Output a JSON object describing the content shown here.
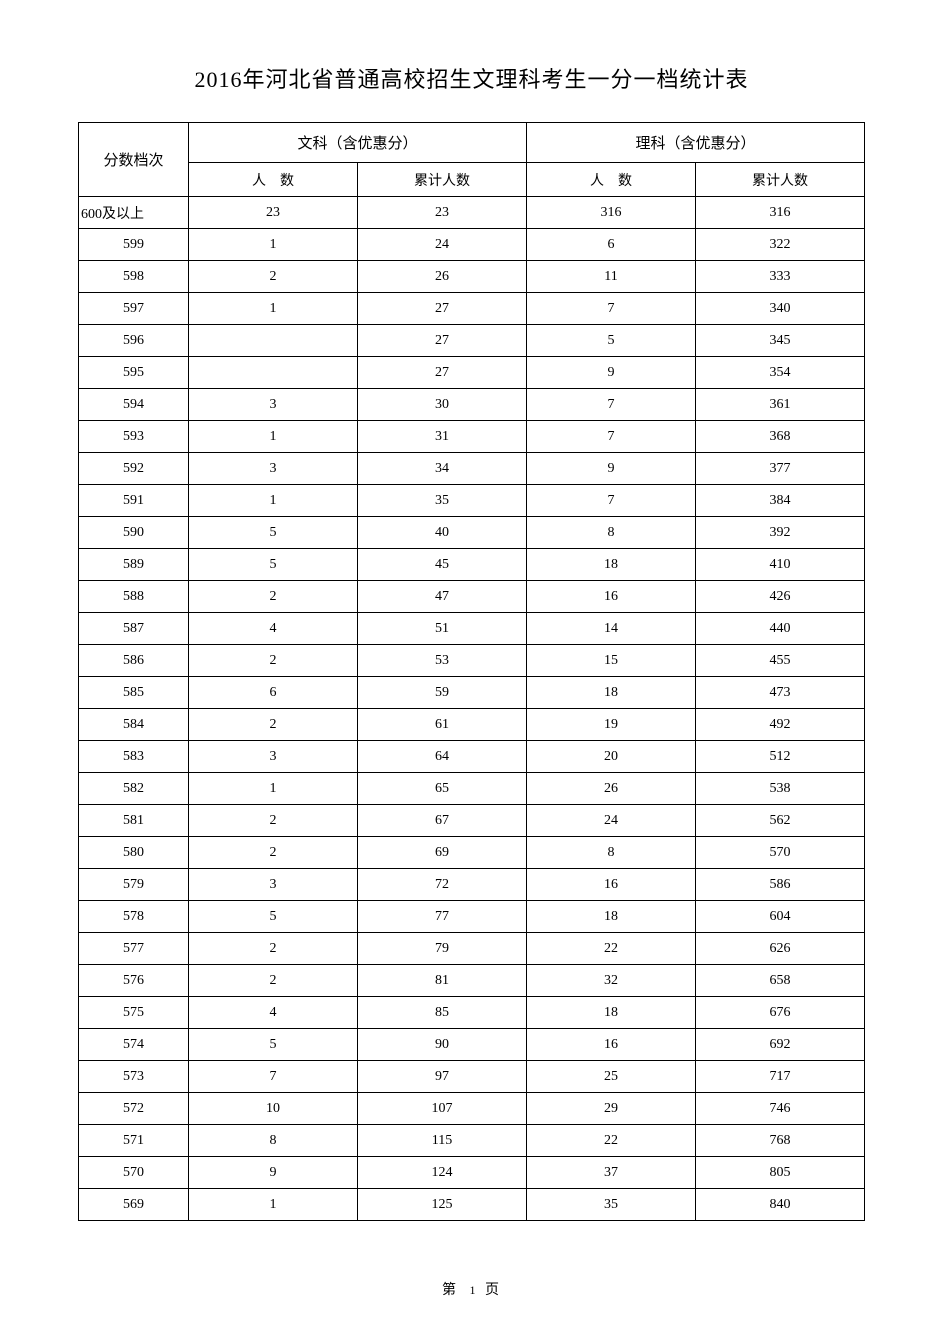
{
  "title": "2016年河北省普通高校招生文理科考生一分一档统计表",
  "headers": {
    "score_level": "分数档次",
    "liberal_arts": "文科（含优惠分）",
    "science": "理科（含优惠分）",
    "count": "人　数",
    "cumulative": "累计人数"
  },
  "footer": {
    "prefix": "第",
    "page": "1",
    "suffix": "页"
  },
  "colors": {
    "border": "#000000",
    "background": "#ffffff",
    "text": "#000000"
  },
  "typography": {
    "title_fontsize": 22,
    "cell_fontsize": 14,
    "font_family": "SimSun"
  },
  "table": {
    "type": "table",
    "columns": [
      "分数档次",
      "文科-人数",
      "文科-累计人数",
      "理科-人数",
      "理科-累计人数"
    ],
    "rows": [
      [
        "600及以上",
        "23",
        "23",
        "316",
        "316"
      ],
      [
        "599",
        "1",
        "24",
        "6",
        "322"
      ],
      [
        "598",
        "2",
        "26",
        "11",
        "333"
      ],
      [
        "597",
        "1",
        "27",
        "7",
        "340"
      ],
      [
        "596",
        "",
        "27",
        "5",
        "345"
      ],
      [
        "595",
        "",
        "27",
        "9",
        "354"
      ],
      [
        "594",
        "3",
        "30",
        "7",
        "361"
      ],
      [
        "593",
        "1",
        "31",
        "7",
        "368"
      ],
      [
        "592",
        "3",
        "34",
        "9",
        "377"
      ],
      [
        "591",
        "1",
        "35",
        "7",
        "384"
      ],
      [
        "590",
        "5",
        "40",
        "8",
        "392"
      ],
      [
        "589",
        "5",
        "45",
        "18",
        "410"
      ],
      [
        "588",
        "2",
        "47",
        "16",
        "426"
      ],
      [
        "587",
        "4",
        "51",
        "14",
        "440"
      ],
      [
        "586",
        "2",
        "53",
        "15",
        "455"
      ],
      [
        "585",
        "6",
        "59",
        "18",
        "473"
      ],
      [
        "584",
        "2",
        "61",
        "19",
        "492"
      ],
      [
        "583",
        "3",
        "64",
        "20",
        "512"
      ],
      [
        "582",
        "1",
        "65",
        "26",
        "538"
      ],
      [
        "581",
        "2",
        "67",
        "24",
        "562"
      ],
      [
        "580",
        "2",
        "69",
        "8",
        "570"
      ],
      [
        "579",
        "3",
        "72",
        "16",
        "586"
      ],
      [
        "578",
        "5",
        "77",
        "18",
        "604"
      ],
      [
        "577",
        "2",
        "79",
        "22",
        "626"
      ],
      [
        "576",
        "2",
        "81",
        "32",
        "658"
      ],
      [
        "575",
        "4",
        "85",
        "18",
        "676"
      ],
      [
        "574",
        "5",
        "90",
        "16",
        "692"
      ],
      [
        "573",
        "7",
        "97",
        "25",
        "717"
      ],
      [
        "572",
        "10",
        "107",
        "29",
        "746"
      ],
      [
        "571",
        "8",
        "115",
        "22",
        "768"
      ],
      [
        "570",
        "9",
        "124",
        "37",
        "805"
      ],
      [
        "569",
        "1",
        "125",
        "35",
        "840"
      ]
    ]
  }
}
